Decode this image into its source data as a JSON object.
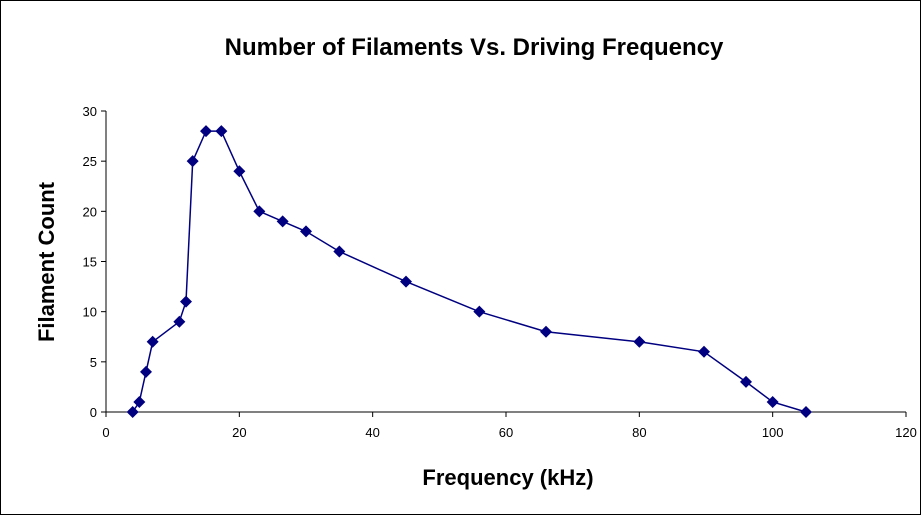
{
  "chart_data": {
    "type": "line",
    "title": "Number of Filaments Vs. Driving Frequency",
    "xlabel": "Frequency (kHz)",
    "ylabel": "Filament Count",
    "xlim": [
      0,
      120
    ],
    "ylim": [
      0,
      30
    ],
    "x_ticks": [
      0,
      20,
      40,
      60,
      80,
      100,
      120
    ],
    "y_ticks": [
      0,
      5,
      10,
      15,
      20,
      25,
      30
    ],
    "grid": false,
    "legend": "none",
    "marker": "diamond",
    "series": [
      {
        "color": "#000080",
        "x": [
          4,
          5,
          6,
          7,
          11,
          12,
          13,
          15,
          17.3,
          20,
          23,
          26.5,
          30,
          35,
          45,
          56,
          66,
          80,
          89.7,
          96,
          100,
          105
        ],
        "y": [
          0,
          1,
          4,
          7,
          9,
          11,
          25,
          28,
          28,
          24,
          20,
          19,
          18,
          16,
          13,
          10,
          8,
          7,
          6,
          3,
          1,
          0
        ]
      }
    ]
  }
}
